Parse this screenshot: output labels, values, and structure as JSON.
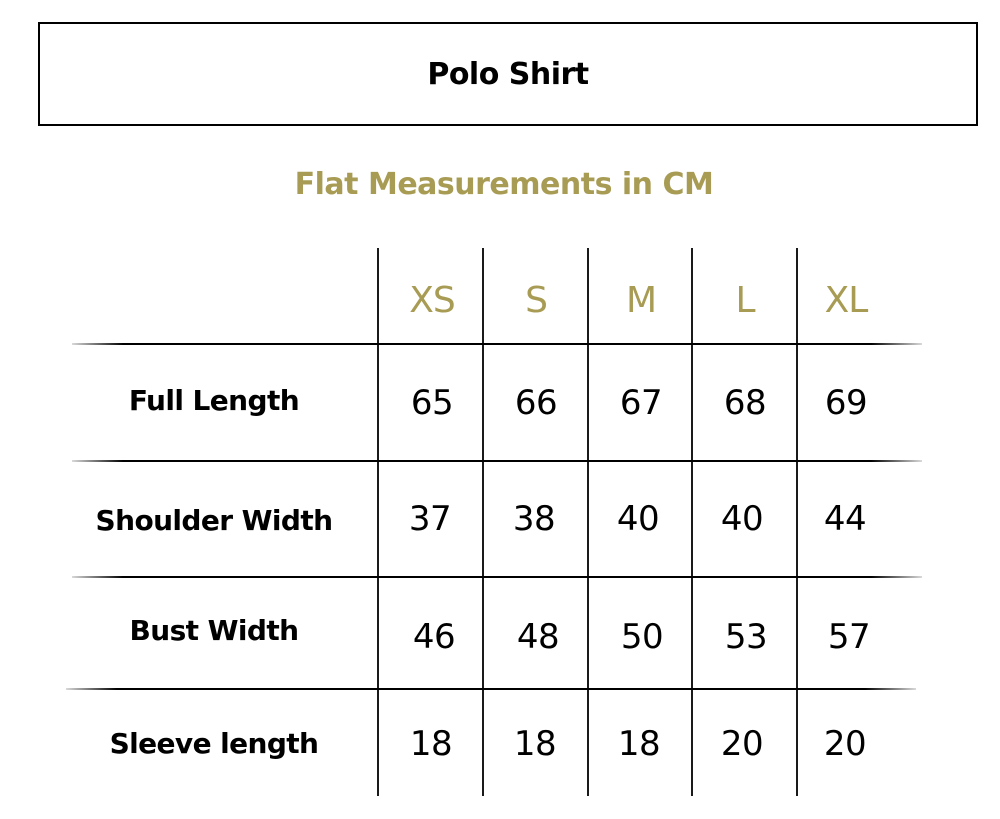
{
  "title": "Polo Shirt",
  "subtitle": "Flat Measurements in CM",
  "colors": {
    "accent": "#a89c55",
    "text": "#000000"
  },
  "sizes": [
    "XS",
    "S",
    "M",
    "L",
    "XL"
  ],
  "rows": [
    {
      "label": "Full Length",
      "values": [
        "65",
        "66",
        "67",
        "68",
        "69"
      ]
    },
    {
      "label": "Shoulder Width",
      "values": [
        "37",
        "38",
        "40",
        "40",
        "44"
      ]
    },
    {
      "label": "Bust Width",
      "values": [
        "46",
        "48",
        "50",
        "53",
        "57"
      ]
    },
    {
      "label": "Sleeve length",
      "values": [
        "18",
        "18",
        "18",
        "20",
        "20"
      ]
    }
  ]
}
